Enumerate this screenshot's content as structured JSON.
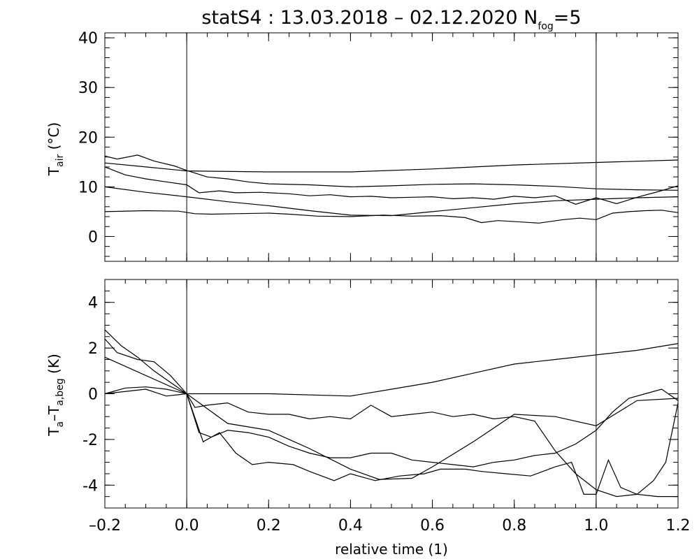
{
  "figure": {
    "title_main": "statS4 : 13.03.2018 – 02.12.2020 N",
    "title_sub": "fog",
    "title_end": "=5",
    "xlabel": "relative time (1)"
  },
  "chart_data": [
    {
      "type": "line",
      "ylabel_main": "T",
      "ylabel_sub": "air",
      "ylabel_unit": " (°C)",
      "xlim": [
        -0.2,
        1.2
      ],
      "ylim": [
        -5,
        41
      ],
      "yticks": [
        0,
        10,
        20,
        30,
        40
      ],
      "xticks": [
        -0.2,
        0.0,
        0.2,
        0.4,
        0.6,
        0.8,
        1.0,
        1.2
      ],
      "vlines": [
        0.0,
        1.0
      ],
      "series": [
        {
          "x": [
            -0.2,
            -0.1,
            0.0,
            0.2,
            0.4,
            0.6,
            0.8,
            1.0,
            1.2
          ],
          "y": [
            14.8,
            14.0,
            13.2,
            13.0,
            13.0,
            13.6,
            14.4,
            14.9,
            15.4
          ]
        },
        {
          "x": [
            -0.2,
            -0.17,
            -0.12,
            -0.08,
            -0.03,
            0.0,
            0.05,
            0.1,
            0.15,
            0.2,
            0.3,
            0.4,
            0.5,
            0.6,
            0.7,
            0.8,
            0.9,
            1.0,
            1.1,
            1.2
          ],
          "y": [
            16.2,
            15.6,
            16.4,
            15.2,
            14.2,
            13.3,
            12.0,
            11.6,
            11.0,
            10.6,
            10.4,
            10.0,
            10.2,
            10.5,
            10.6,
            10.4,
            10.1,
            9.6,
            9.4,
            9.3
          ]
        },
        {
          "x": [
            -0.2,
            -0.15,
            -0.1,
            -0.05,
            0.0,
            0.03,
            0.08,
            0.12,
            0.18,
            0.25,
            0.3,
            0.35,
            0.4,
            0.45,
            0.5,
            0.55,
            0.6,
            0.65,
            0.7,
            0.75,
            0.8,
            0.85,
            0.9,
            0.95,
            1.0,
            1.05,
            1.1,
            1.15,
            1.2
          ],
          "y": [
            14.0,
            12.4,
            11.6,
            11.0,
            10.4,
            8.8,
            9.2,
            8.8,
            8.9,
            8.6,
            8.2,
            8.4,
            8.0,
            8.1,
            7.8,
            7.9,
            8.0,
            7.6,
            7.8,
            7.5,
            8.1,
            7.8,
            8.2,
            6.5,
            7.8,
            6.6,
            7.9,
            9.0,
            10.2
          ]
        },
        {
          "x": [
            -0.2,
            -0.1,
            0.0,
            0.1,
            0.2,
            0.3,
            0.4,
            0.5,
            0.6,
            0.7,
            0.8,
            0.9,
            1.0,
            1.1,
            1.2
          ],
          "y": [
            10.0,
            8.9,
            8.0,
            7.0,
            6.2,
            5.2,
            4.3,
            4.2,
            5.0,
            5.8,
            6.6,
            7.2,
            7.5,
            7.8,
            8.0
          ]
        },
        {
          "x": [
            -0.2,
            -0.1,
            -0.02,
            0.02,
            0.06,
            0.12,
            0.2,
            0.25,
            0.32,
            0.4,
            0.48,
            0.55,
            0.62,
            0.68,
            0.72,
            0.76,
            0.82,
            0.86,
            0.92,
            0.96,
            1.0,
            1.04,
            1.08,
            1.12,
            1.16,
            1.2
          ],
          "y": [
            5.0,
            5.2,
            5.1,
            4.6,
            4.5,
            4.6,
            4.7,
            4.5,
            4.1,
            4.0,
            4.3,
            4.1,
            4.2,
            3.8,
            2.8,
            3.2,
            2.9,
            2.7,
            3.4,
            3.7,
            3.4,
            4.7,
            5.0,
            5.2,
            5.3,
            4.8
          ]
        }
      ]
    },
    {
      "type": "line",
      "ylabel_a": "T",
      "ylabel_a_sub": "a",
      "ylabel_b": "–T",
      "ylabel_b_sub": "a,beg",
      "ylabel_unit": " (K)",
      "xlim": [
        -0.2,
        1.2
      ],
      "ylim": [
        -5,
        5
      ],
      "yticks": [
        -4,
        -2,
        0,
        2,
        4
      ],
      "xticks": [
        -0.2,
        0.0,
        0.2,
        0.4,
        0.6,
        0.8,
        1.0,
        1.2
      ],
      "xticklabels": [
        "–0.2",
        "0.0",
        "0.2",
        "0.4",
        "0.6",
        "0.8",
        "1.0",
        "1.2"
      ],
      "vlines": [
        0.0,
        1.0
      ],
      "series": [
        {
          "x": [
            -0.2,
            -0.15,
            -0.1,
            -0.05,
            0.0,
            0.2,
            0.4,
            0.5,
            0.6,
            0.7,
            0.8,
            0.9,
            1.0,
            1.1,
            1.2
          ],
          "y": [
            0.0,
            0.25,
            0.3,
            0.2,
            0.0,
            0.0,
            -0.1,
            0.2,
            0.5,
            0.9,
            1.3,
            1.5,
            1.7,
            1.9,
            2.2
          ]
        },
        {
          "x": [
            -0.2,
            0.0,
            0.1,
            0.2,
            0.3,
            0.4,
            0.47,
            0.55,
            0.6,
            0.7,
            0.8,
            0.9,
            1.0,
            1.1,
            1.2
          ],
          "y": [
            1.6,
            0.0,
            -1.3,
            -1.6,
            -2.4,
            -3.3,
            -3.75,
            -3.7,
            -3.2,
            -2.1,
            -0.9,
            -1.0,
            -1.4,
            -0.3,
            -0.2
          ]
        },
        {
          "x": [
            -0.2,
            -0.17,
            -0.12,
            -0.08,
            -0.04,
            -0.02,
            0.0,
            0.03,
            0.06,
            0.1,
            0.15,
            0.2,
            0.25,
            0.3,
            0.35,
            0.4,
            0.45,
            0.5,
            0.55,
            0.6,
            0.65,
            0.7,
            0.75,
            0.8,
            0.85,
            0.9,
            0.95,
            1.0,
            1.04,
            1.08,
            1.12,
            1.16,
            1.2
          ],
          "y": [
            2.4,
            1.8,
            1.5,
            1.4,
            0.8,
            0.4,
            0.0,
            -1.7,
            -1.9,
            -1.6,
            -1.7,
            -1.9,
            -2.3,
            -2.6,
            -2.8,
            -2.8,
            -2.6,
            -2.6,
            -2.9,
            -3.0,
            -3.1,
            -3.2,
            -3.0,
            -2.9,
            -2.7,
            -2.6,
            -2.2,
            -1.6,
            -0.8,
            -0.2,
            0.0,
            0.2,
            -0.3
          ]
        },
        {
          "x": [
            -0.2,
            -0.16,
            -0.12,
            -0.08,
            -0.04,
            0.0,
            0.04,
            0.08,
            0.12,
            0.16,
            0.2,
            0.26,
            0.3,
            0.36,
            0.4,
            0.46,
            0.52,
            0.58,
            0.62,
            0.68,
            0.72,
            0.78,
            0.84,
            0.9,
            0.94,
            0.97,
            1.0,
            1.03,
            1.06,
            1.1,
            1.14,
            1.17,
            1.2
          ],
          "y": [
            2.8,
            2.1,
            1.6,
            1.0,
            0.5,
            0.0,
            -2.1,
            -1.7,
            -2.6,
            -3.1,
            -3.0,
            -3.1,
            -3.4,
            -3.8,
            -3.5,
            -3.8,
            -3.6,
            -3.5,
            -3.3,
            -3.3,
            -3.4,
            -3.5,
            -3.6,
            -3.2,
            -3.0,
            -4.4,
            -4.4,
            -2.9,
            -4.1,
            -4.4,
            -3.8,
            -3.0,
            -0.4
          ]
        },
        {
          "x": [
            -0.2,
            -0.1,
            -0.05,
            0.0,
            0.02,
            0.05,
            0.1,
            0.15,
            0.2,
            0.25,
            0.3,
            0.35,
            0.4,
            0.45,
            0.5,
            0.55,
            0.6,
            0.65,
            0.7,
            0.75,
            0.8,
            0.85,
            0.9,
            0.95,
            1.0,
            1.05,
            1.1,
            1.15,
            1.2
          ],
          "y": [
            0.0,
            0.2,
            -0.1,
            0.0,
            -0.6,
            -0.5,
            -0.4,
            -0.8,
            -0.9,
            -0.9,
            -1.1,
            -1.0,
            -1.1,
            -0.5,
            -1.0,
            -0.9,
            -0.8,
            -1.0,
            -0.9,
            -1.1,
            -1.0,
            -1.2,
            -2.5,
            -3.5,
            -4.2,
            -4.5,
            -4.4,
            -4.5,
            -4.5
          ]
        }
      ]
    }
  ]
}
